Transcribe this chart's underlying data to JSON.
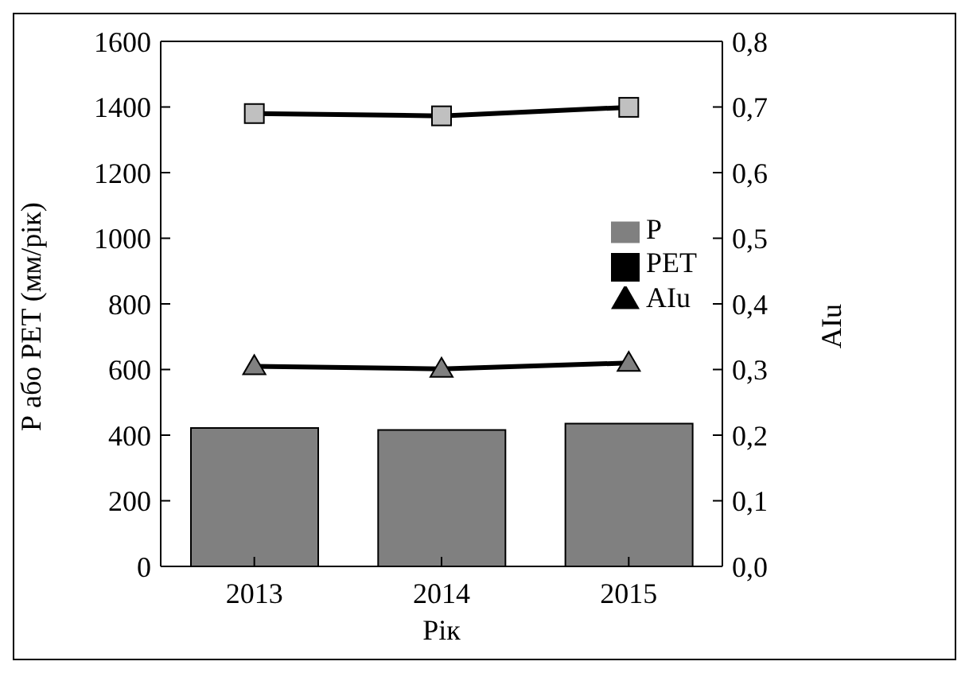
{
  "chart_data": {
    "type": "bar",
    "xlabel": "Рік",
    "ylabel": "Р або PET (мм/рік)",
    "y2label": "AIu",
    "categories": [
      "2013",
      "2014",
      "2015"
    ],
    "series": [
      {
        "name": "P",
        "color": "#808080",
        "values": [
          422,
          416,
          435
        ]
      },
      {
        "name": "PET",
        "type": "line",
        "color": "#c0c0c0",
        "marker": "square",
        "values": [
          1380,
          1373,
          1399
        ]
      },
      {
        "name": "AIu",
        "type": "line",
        "axis": "y2",
        "color": "#808080",
        "marker": "triangle",
        "values": [
          0.305,
          0.301,
          0.31
        ]
      }
    ],
    "ylim": [
      0,
      1600
    ],
    "yticks": [
      0,
      200,
      400,
      600,
      800,
      1000,
      1200,
      1400,
      1600
    ],
    "y2lim": [
      0,
      0.8
    ],
    "y2ticks": [
      {
        "value": 0,
        "label": "0,0"
      },
      {
        "value": 0.1,
        "label": "0,1"
      },
      {
        "value": 0.2,
        "label": "0,2"
      },
      {
        "value": 0.3,
        "label": "0,3"
      },
      {
        "value": 0.4,
        "label": "0,4"
      },
      {
        "value": 0.5,
        "label": "0,5"
      },
      {
        "value": 0.6,
        "label": "0,6"
      },
      {
        "value": 0.7,
        "label": "0,7"
      },
      {
        "value": 0.8,
        "label": "0,8"
      }
    ],
    "grid": false,
    "legend": "right",
    "line_style": "solid"
  }
}
